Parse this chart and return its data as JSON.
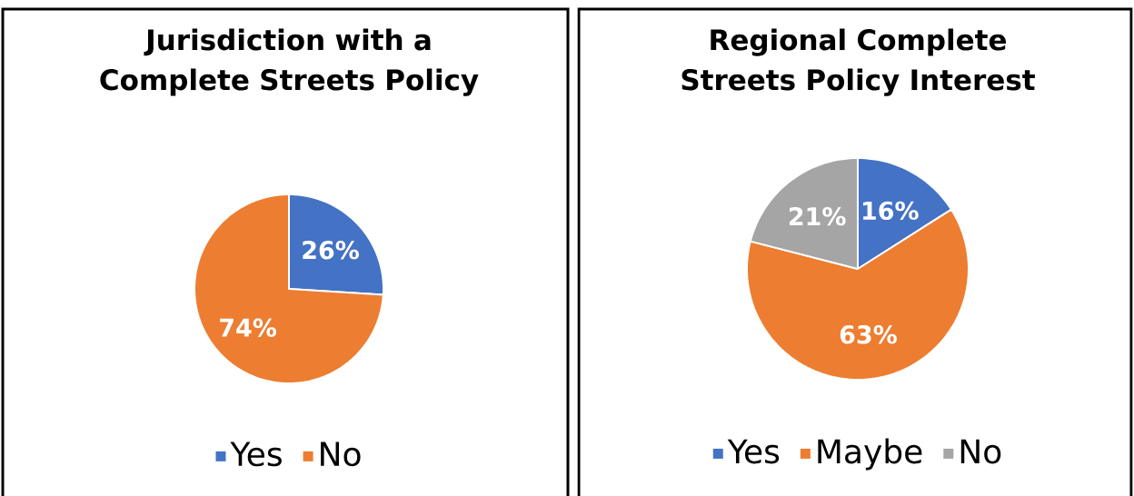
{
  "chart_data": [
    {
      "type": "pie",
      "title": "Jurisdiction with a Complete Streets Policy",
      "categories": [
        "Yes",
        "No"
      ],
      "values": [
        26,
        74
      ],
      "colors": [
        "#4472c4",
        "#ed7d31"
      ],
      "value_labels": [
        "26%",
        "74%"
      ],
      "legend": "bottom"
    },
    {
      "type": "pie",
      "title": "Regional Complete Streets Policy Interest",
      "categories": [
        "Yes",
        "Maybe",
        "No"
      ],
      "values": [
        16,
        63,
        21
      ],
      "colors": [
        "#4472c4",
        "#ed7d31",
        "#a5a5a5"
      ],
      "value_labels": [
        "16%",
        "63%",
        "21%"
      ],
      "legend": "bottom"
    }
  ]
}
